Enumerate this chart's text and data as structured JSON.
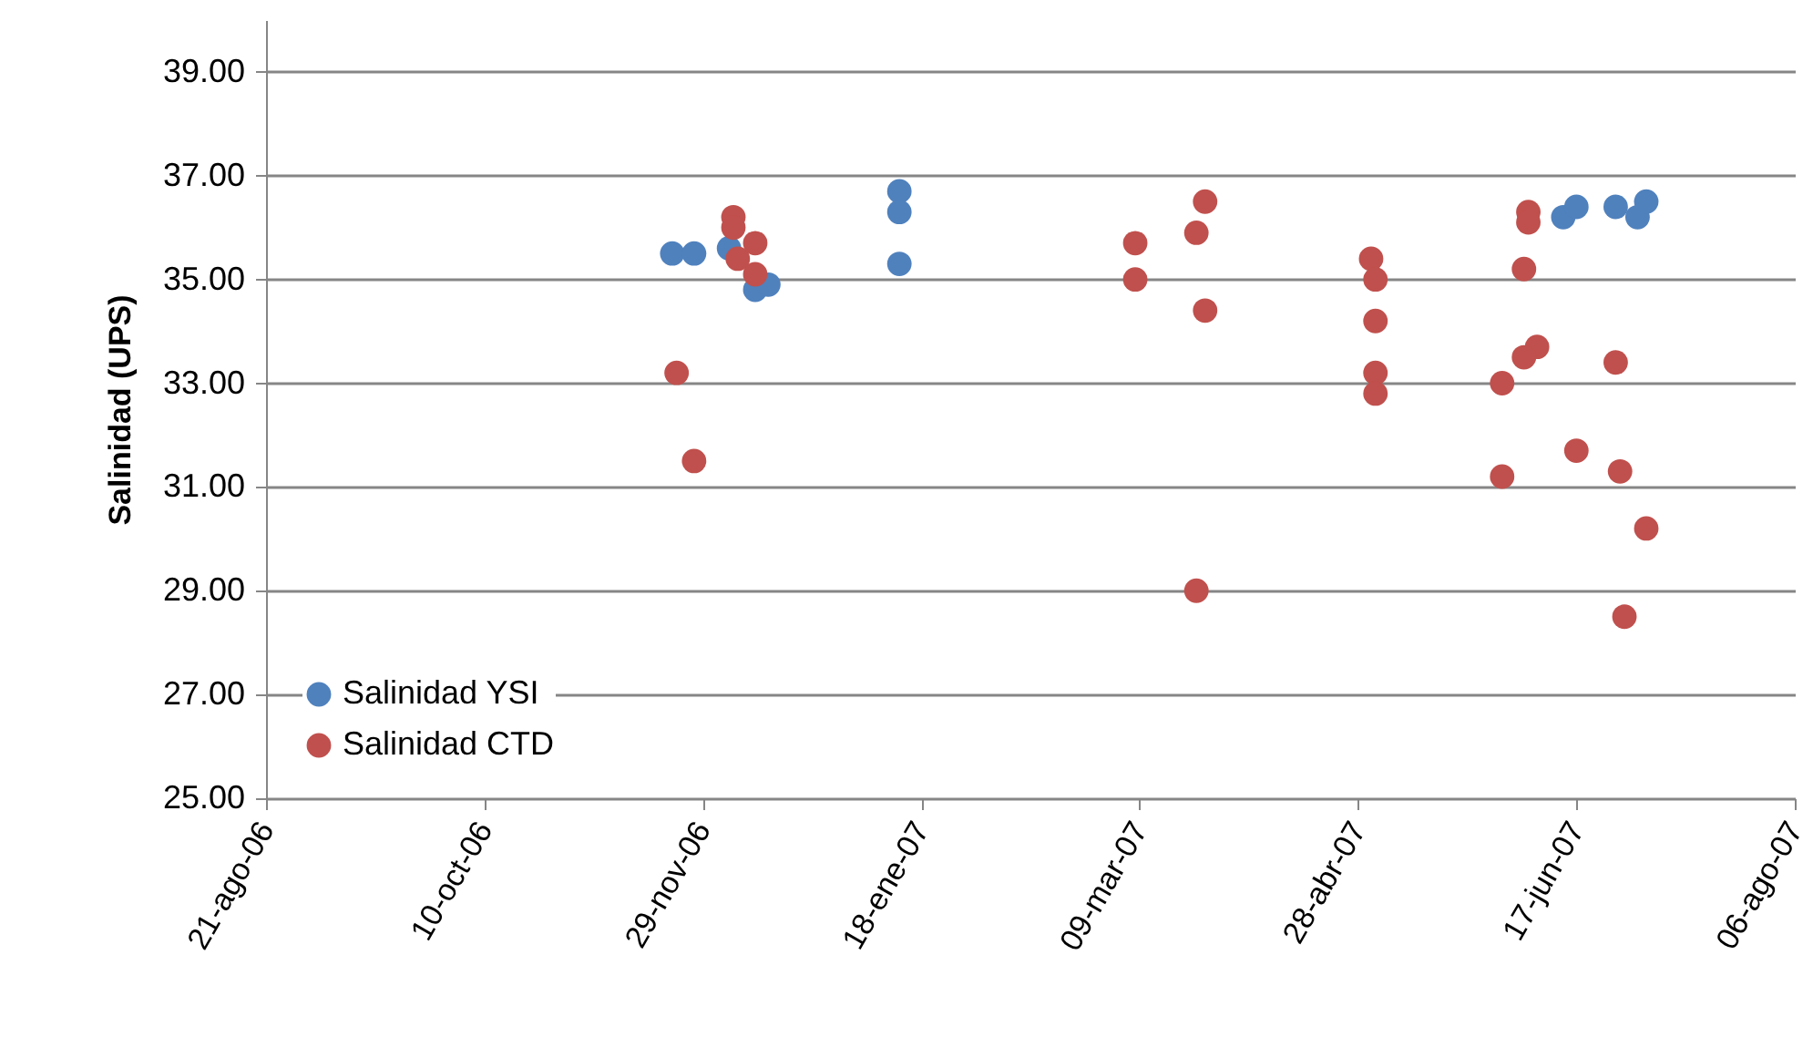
{
  "chart_data": {
    "type": "scatter",
    "ylabel": "Salinidad (UPS)",
    "xlim": [
      "2006-08-21",
      "2007-08-06"
    ],
    "xticks": [
      {
        "value": "2006-08-21",
        "label": "21-ago-06"
      },
      {
        "value": "2006-10-10",
        "label": "10-oct-06"
      },
      {
        "value": "2006-11-29",
        "label": "29-nov-06"
      },
      {
        "value": "2007-01-18",
        "label": "18-ene-07"
      },
      {
        "value": "2007-03-09",
        "label": "09-mar-07"
      },
      {
        "value": "2007-04-28",
        "label": "28-abr-07"
      },
      {
        "value": "2007-06-17",
        "label": "17-jun-07"
      },
      {
        "value": "2007-08-06",
        "label": "06-ago-07"
      }
    ],
    "ylim": [
      25,
      40
    ],
    "yticks": [
      {
        "value": 25,
        "label": "25.00"
      },
      {
        "value": 27,
        "label": "27.00"
      },
      {
        "value": 29,
        "label": "29.00"
      },
      {
        "value": 31,
        "label": "31.00"
      },
      {
        "value": 33,
        "label": "33.00"
      },
      {
        "value": 35,
        "label": "35.00"
      },
      {
        "value": 37,
        "label": "37.00"
      },
      {
        "value": 39,
        "label": "39.00"
      }
    ],
    "grid": "y",
    "legend": "bottom left",
    "marker": "circle",
    "series": [
      {
        "name": "Salinidad YSI",
        "color": "#4f81bd",
        "x": [
          "2006-11-22",
          "2006-11-27",
          "2006-12-05",
          "2006-12-11",
          "2006-12-14",
          "2007-01-13",
          "2007-01-13",
          "2007-01-13",
          "2007-06-14",
          "2007-06-17",
          "2007-06-26",
          "2007-07-01",
          "2007-07-03"
        ],
        "values": [
          35.5,
          35.5,
          35.6,
          34.8,
          34.9,
          36.7,
          36.3,
          35.3,
          36.2,
          36.4,
          36.4,
          36.2,
          36.5
        ]
      },
      {
        "name": "Salinidad CTD",
        "color": "#c0504d",
        "x": [
          "2006-11-23",
          "2006-11-27",
          "2006-12-06",
          "2006-12-06",
          "2006-12-07",
          "2006-12-11",
          "2006-12-11",
          "2007-03-08",
          "2007-03-08",
          "2007-03-24",
          "2007-03-22",
          "2007-03-24",
          "2007-03-22",
          "2007-05-01",
          "2007-05-02",
          "2007-05-02",
          "2007-05-02",
          "2007-05-02",
          "2007-06-06",
          "2007-06-06",
          "2007-06-05",
          "2007-06-08",
          "2007-06-05",
          "2007-05-31",
          "2007-05-31",
          "2007-06-17",
          "2007-06-26",
          "2007-06-27",
          "2007-07-03",
          "2007-06-28"
        ],
        "values": [
          33.2,
          31.5,
          36.2,
          36.0,
          35.4,
          35.7,
          35.1,
          35.7,
          35.0,
          36.5,
          35.9,
          34.4,
          29.0,
          35.4,
          35.0,
          34.2,
          33.2,
          32.8,
          36.3,
          36.1,
          35.2,
          33.7,
          33.5,
          33.0,
          31.2,
          31.7,
          33.4,
          31.3,
          30.2,
          28.5
        ]
      }
    ]
  }
}
